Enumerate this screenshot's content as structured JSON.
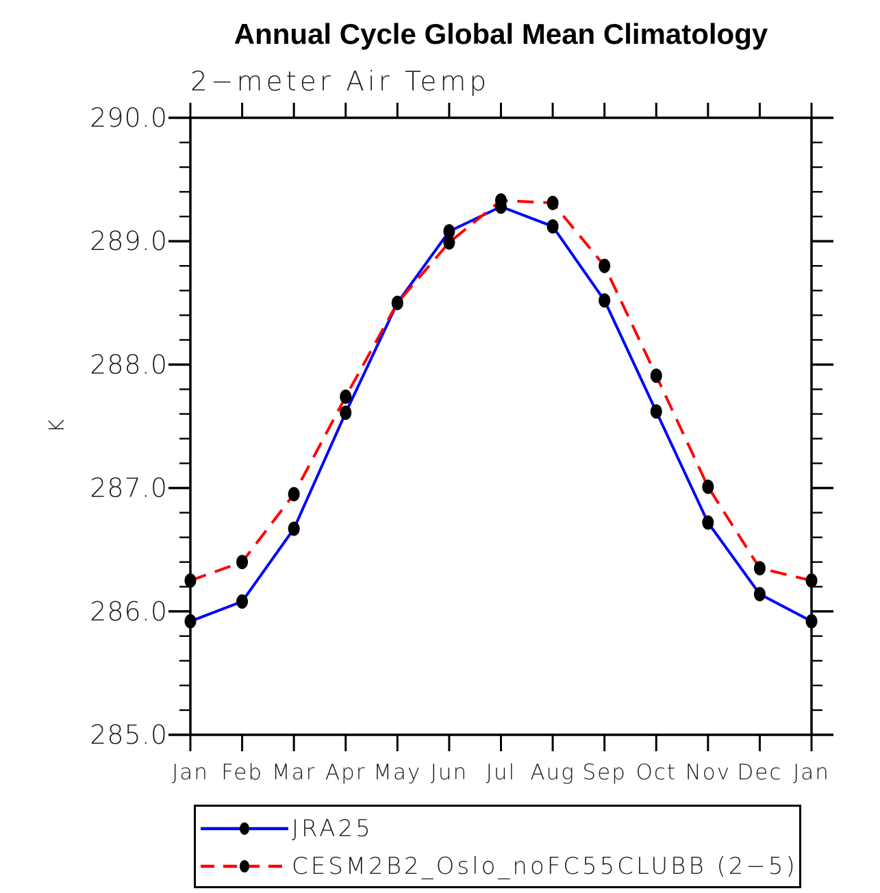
{
  "title": "Annual Cycle Global Mean Climatology",
  "subtitle": "2−meter Air Temp",
  "y_axis_label": "K",
  "chart_data": {
    "type": "line",
    "title": "Annual Cycle Global Mean Climatology",
    "subtitle": "2−meter Air Temp",
    "xlabel": "",
    "ylabel": "K",
    "ylim": [
      285.0,
      290.0
    ],
    "y_major_step": 1.0,
    "y_minor_step": 0.2,
    "y_major_tick_labels": [
      "285.0",
      "286.0",
      "287.0",
      "288.0",
      "289.0",
      "290.0"
    ],
    "grid": false,
    "x_categories": [
      "Jan",
      "Feb",
      "Mar",
      "Apr",
      "May",
      "Jun",
      "Jul",
      "Aug",
      "Sep",
      "Oct",
      "Nov",
      "Dec",
      "Jan"
    ],
    "series": [
      {
        "name": "JRA25",
        "color": "#0000ff",
        "line_style": "solid",
        "marker": "filled-black-ellipse",
        "values": [
          285.92,
          286.08,
          286.67,
          287.61,
          288.5,
          289.08,
          289.28,
          289.12,
          288.52,
          287.62,
          286.72,
          286.14,
          285.92
        ]
      },
      {
        "name": "CESM2B2_Oslo_noFC55CLUBB (2−5)",
        "color": "#ff0000",
        "line_style": "dashed",
        "marker": "filled-black-ellipse",
        "values": [
          286.25,
          286.4,
          286.95,
          287.74,
          288.5,
          288.99,
          289.33,
          289.31,
          288.8,
          287.91,
          287.01,
          286.35,
          286.25
        ]
      }
    ],
    "legend_position": "bottom-left-box"
  },
  "colors": {
    "background": "#ffffff",
    "axis": "#000000",
    "marker": "#000000",
    "tick_text": "#1c1c1c",
    "title_text": "#000000",
    "series_jra25": "#0000ff",
    "series_cesm": "#ff0000"
  }
}
